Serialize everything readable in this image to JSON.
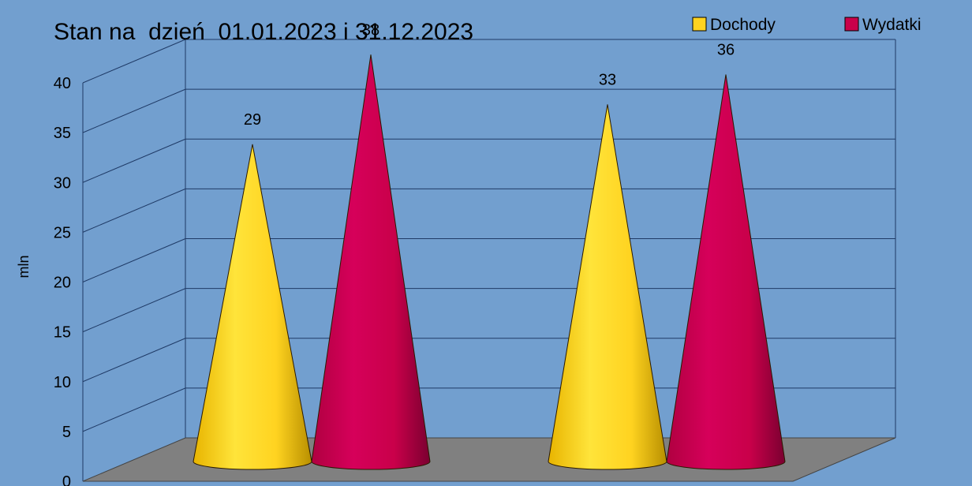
{
  "chart_data": {
    "type": "bar",
    "title": "Stan na  dzień  01.01.2023 i 31.12.2023",
    "xlabel": "",
    "ylabel": "mln",
    "ylim": [
      0,
      40
    ],
    "yticks": [
      "0",
      "5",
      "10",
      "15",
      "20",
      "25",
      "30",
      "35",
      "40"
    ],
    "categories": [
      "",
      ""
    ],
    "series": [
      {
        "name": "Dochody",
        "values": [
          29,
          33
        ],
        "color": "#ffd320"
      },
      {
        "name": "Wydatki",
        "values": [
          38,
          36
        ],
        "color": "#c9004a"
      }
    ],
    "data_labels": [
      "29",
      "38",
      "33",
      "36"
    ],
    "legend_position": "top-right",
    "grid": true,
    "style": "3d-cone",
    "colors": {
      "background": "#729fcf",
      "floor": "#808080",
      "grid": "#1f3a66"
    }
  }
}
